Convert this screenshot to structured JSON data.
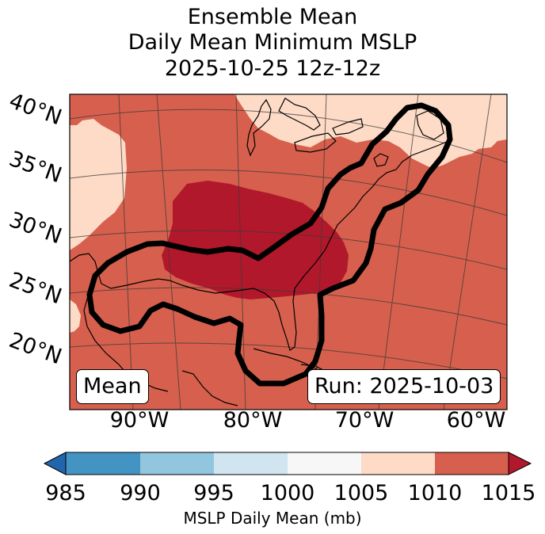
{
  "title": {
    "line1": "Ensemble Mean",
    "line2": "Daily Mean Minimum MSLP",
    "line3": "2025-10-25 12z-12z"
  },
  "map": {
    "latitude_labels": [
      "40°N",
      "35°N",
      "30°N",
      "25°N",
      "20°N"
    ],
    "longitude_labels": [
      "90°W",
      "80°W",
      "70°W",
      "60°W"
    ],
    "left_box_label": "Mean",
    "right_box_label": "Run: 2025-10-03",
    "colors": {
      "band_1005_1010": "#fddbc7",
      "band_1010_1015": "#d6604d",
      "band_above_1015": "#b2182b",
      "contour": "#000000"
    }
  },
  "colorbar": {
    "label": "MSLP Daily Mean (mb)",
    "ticks": [
      "985",
      "990",
      "995",
      "1000",
      "1005",
      "1010",
      "1015"
    ],
    "bands": [
      {
        "range": "985-990",
        "color": "#4393c3"
      },
      {
        "range": "990-995",
        "color": "#92c5de"
      },
      {
        "range": "995-1000",
        "color": "#d1e5f0"
      },
      {
        "range": "1000-1005",
        "color": "#f7f7f7"
      },
      {
        "range": "1005-1010",
        "color": "#fddbc7"
      },
      {
        "range": "1010-1015",
        "color": "#d6604d"
      }
    ],
    "under_color": "#2166ac",
    "over_color": "#b2182b"
  }
}
